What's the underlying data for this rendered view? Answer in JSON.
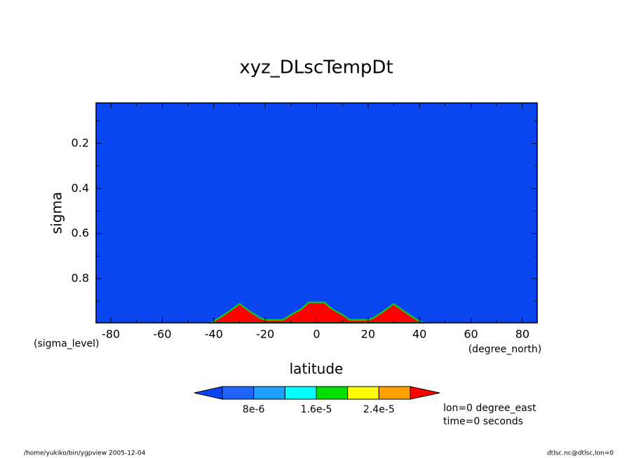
{
  "chart_data": {
    "type": "contour",
    "title": "xyz_DLscTempDt",
    "x_label": "latitude",
    "y_label": "sigma",
    "x_unit": "(degree_north)",
    "y_unit": "(sigma_level)",
    "xlim": [
      -85.76,
      85.76
    ],
    "ylim": [
      0.02,
      0.996
    ],
    "y_inverted": true,
    "xticks": [
      -80,
      -60,
      -40,
      -20,
      0,
      20,
      40,
      60,
      80
    ],
    "xminorticks": [
      -70,
      -50,
      -30,
      -10,
      10,
      30,
      50,
      70
    ],
    "yticks": [
      0.2,
      0.4,
      0.6,
      0.8
    ],
    "yminorticks": [
      0.1,
      0.3,
      0.5,
      0.7,
      0.9
    ],
    "field_color": "#0a46f0",
    "contour": {
      "color": "#ff0000",
      "edge_color": "#00e000",
      "lat": [
        -41,
        -38,
        -34,
        -30,
        -26,
        -22,
        -20,
        -13,
        -10,
        -6,
        -3,
        3,
        6,
        10,
        13,
        20,
        22,
        26,
        30,
        34,
        38,
        41
      ],
      "sigma": [
        0.996,
        0.975,
        0.945,
        0.912,
        0.945,
        0.975,
        0.983,
        0.983,
        0.96,
        0.935,
        0.905,
        0.905,
        0.935,
        0.96,
        0.983,
        0.983,
        0.975,
        0.945,
        0.912,
        0.945,
        0.975,
        0.996
      ]
    },
    "colorbar": {
      "levels": [
        4e-06,
        8e-06,
        1.2e-05,
        1.6e-05,
        2e-05,
        2.4e-05,
        2.8e-05
      ],
      "colors": [
        "#0a46f0",
        "#1e64ff",
        "#1ea0ff",
        "#00ffff",
        "#00e000",
        "#ffff00",
        "#ffa000",
        "#ff0000"
      ],
      "ticks": [
        {
          "value": 8e-06,
          "label": "8e-6"
        },
        {
          "value": 1.6e-05,
          "label": "1.6e-5"
        },
        {
          "value": 2.4e-05,
          "label": "2.4e-5"
        }
      ]
    },
    "annotations": [
      "lon=0 degree_east",
      "time=0 seconds"
    ],
    "footer_left": "/home/yukiko/bin/ygpview  2005-12-04",
    "footer_right": "dtlsc.nc@dtlsc,lon=0"
  }
}
